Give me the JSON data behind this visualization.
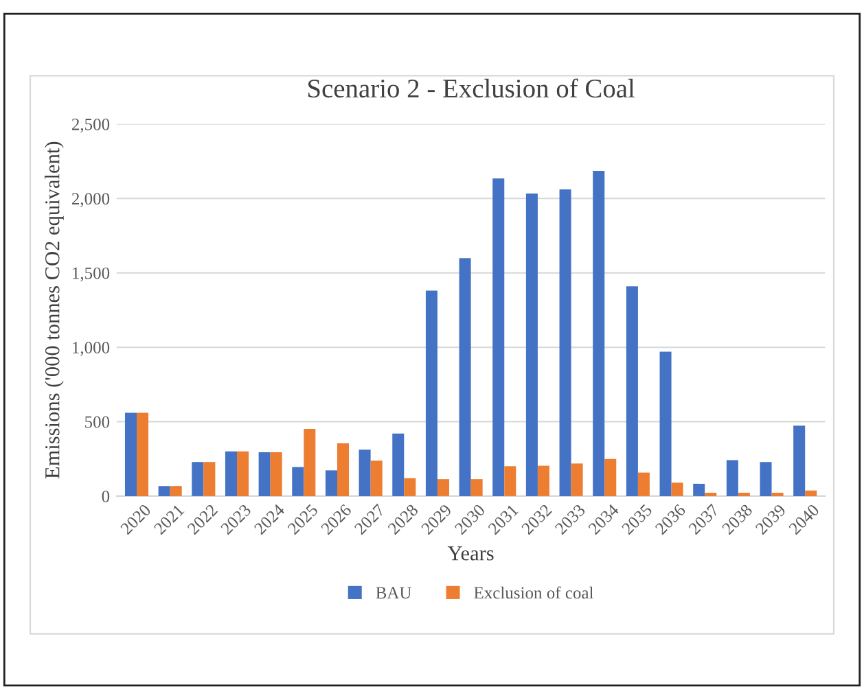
{
  "chart_data": {
    "type": "bar",
    "title": "Scenario 2 - Exclusion of Coal",
    "xlabel": "Years",
    "ylabel": "Emissions ('000 tonnes CO2 equivalent)",
    "categories": [
      "2020",
      "2021",
      "2022",
      "2023",
      "2024",
      "2025",
      "2026",
      "2027",
      "2028",
      "2029",
      "2030",
      "2031",
      "2032",
      "2033",
      "2034",
      "2035",
      "2036",
      "2037",
      "2038",
      "2039",
      "2040"
    ],
    "series": [
      {
        "name": "BAU",
        "color": "#4472c4",
        "values": [
          560,
          68,
          229,
          300,
          294,
          195,
          173,
          312,
          420,
          1381,
          1598,
          2135,
          2033,
          2061,
          2185,
          1409,
          970,
          83,
          241,
          229,
          473
        ]
      },
      {
        "name": "Exclusion of coal",
        "color": "#ed7d31",
        "values": [
          560,
          68,
          229,
          300,
          294,
          451,
          355,
          238,
          120,
          114,
          114,
          201,
          204,
          219,
          250,
          158,
          90,
          22,
          22,
          22,
          37
        ]
      }
    ],
    "ylim": [
      0,
      2500
    ],
    "yticks": [
      {
        "value": 0,
        "label": "0"
      },
      {
        "value": 500,
        "label": "500"
      },
      {
        "value": 1000,
        "label": "1,000"
      },
      {
        "value": 1500,
        "label": "1,500"
      },
      {
        "value": 2000,
        "label": "2,000"
      },
      {
        "value": 2500,
        "label": "2,500"
      }
    ],
    "grid": "y",
    "legend": "bottom"
  }
}
